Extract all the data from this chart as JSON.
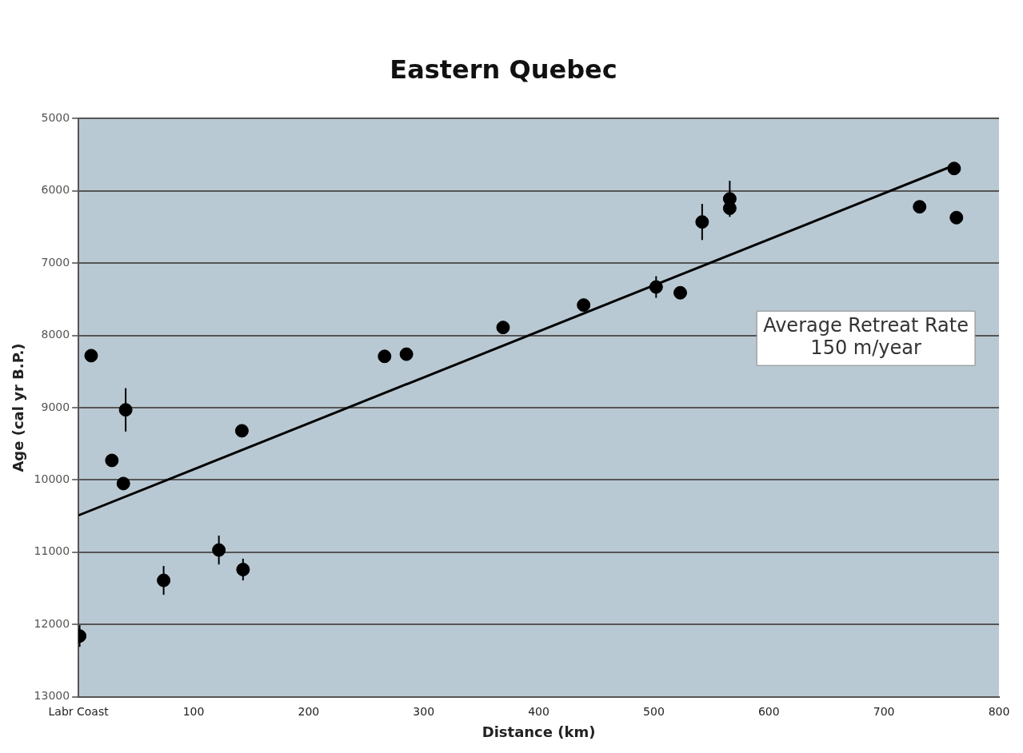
{
  "chart_data": {
    "type": "scatter",
    "title": "Eastern Quebec",
    "xlabel": "Distance (km)",
    "ylabel": "Age (cal yr B.P.)",
    "xlim": [
      0,
      800
    ],
    "xticks": [
      {
        "value": 0,
        "label": "Labr Coast"
      },
      100,
      200,
      300,
      400,
      500,
      600,
      700,
      800
    ],
    "ylim": [
      13000,
      5000
    ],
    "yticks": [
      5000,
      6000,
      7000,
      8000,
      9000,
      10000,
      11000,
      12000,
      13000
    ],
    "grid": "y",
    "marker": "circle",
    "annotations": [
      "Average Retreat Rate\n150 m/year"
    ],
    "series": [
      {
        "color": "#000000",
        "x": [
          1,
          11,
          29,
          39,
          41,
          74,
          122,
          142,
          143,
          266,
          285,
          369,
          439,
          502,
          523,
          542,
          566,
          566,
          731,
          761,
          763
        ],
        "values": [
          12160,
          8280,
          9730,
          10050,
          9030,
          11390,
          10970,
          9320,
          11240,
          8290,
          8260,
          7890,
          7580,
          7330,
          7410,
          6430,
          6110,
          6240,
          6220,
          5690,
          6370
        ],
        "errors": [
          150,
          null,
          null,
          null,
          300,
          200,
          200,
          null,
          150,
          null,
          null,
          null,
          null,
          150,
          null,
          250,
          250,
          null,
          null,
          null,
          null
        ]
      },
      {
        "type": "line",
        "color": "#000000",
        "x": [
          0,
          762
        ],
        "values": [
          10490,
          5640
        ],
        "marker": "none"
      }
    ]
  }
}
